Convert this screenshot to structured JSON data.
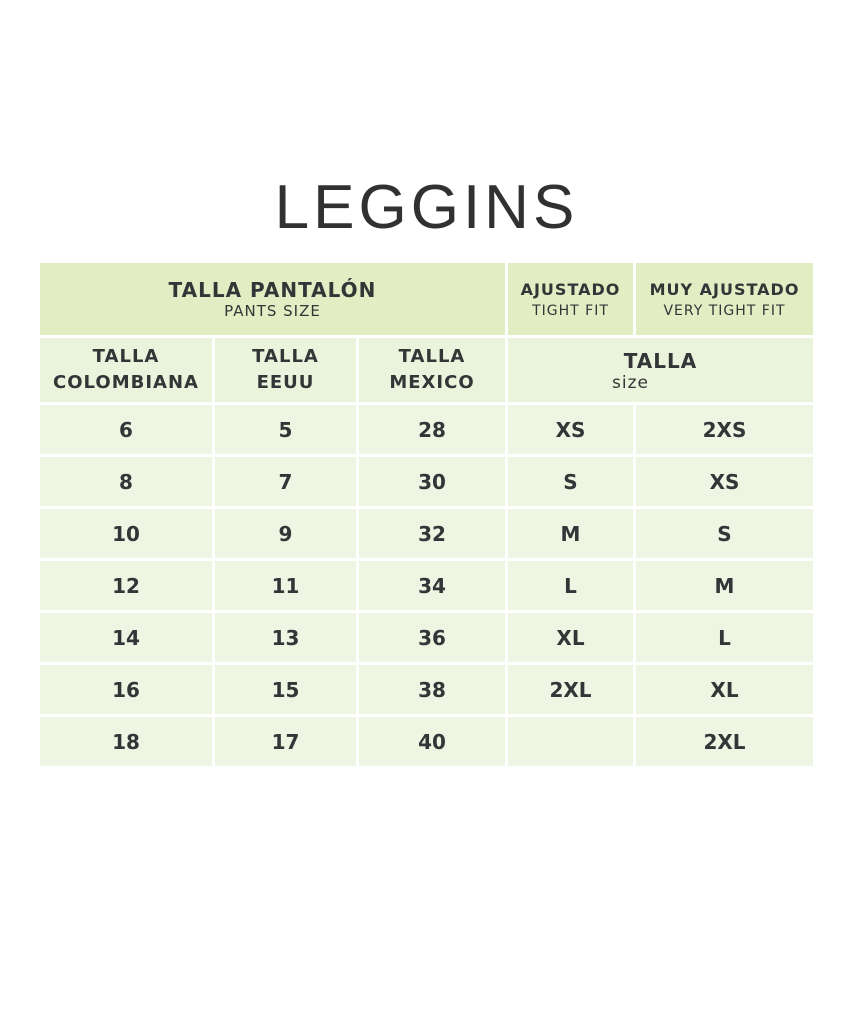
{
  "title": "LEGGINS",
  "header": {
    "pants": {
      "label": "TALLA PANTALÓN",
      "sub": "PANTS SIZE"
    },
    "tight": {
      "label": "AJUSTADO",
      "sub": "TIGHT FIT"
    },
    "very_tight": {
      "label": "MUY AJUSTADO",
      "sub": "VERY TIGHT FIT"
    }
  },
  "columns": [
    {
      "line1": "TALLA",
      "line2": "COLOMBIANA"
    },
    {
      "line1": "TALLA",
      "line2": "EEUU"
    },
    {
      "line1": "TALLA",
      "line2": "MEXICO"
    },
    {
      "line1": "TALLA",
      "line2": "size"
    }
  ],
  "rows": [
    [
      "6",
      "5",
      "28",
      "XS",
      "2XS"
    ],
    [
      "8",
      "7",
      "30",
      "S",
      "XS"
    ],
    [
      "10",
      "9",
      "32",
      "M",
      "S"
    ],
    [
      "12",
      "11",
      "34",
      "L",
      "M"
    ],
    [
      "14",
      "13",
      "36",
      "XL",
      "L"
    ],
    [
      "16",
      "15",
      "38",
      "2XL",
      "XL"
    ],
    [
      "18",
      "17",
      "40",
      "",
      "2XL"
    ]
  ],
  "colors": {
    "header": "#e2edc4",
    "cell": "#eef5e3",
    "text": "#333537"
  }
}
